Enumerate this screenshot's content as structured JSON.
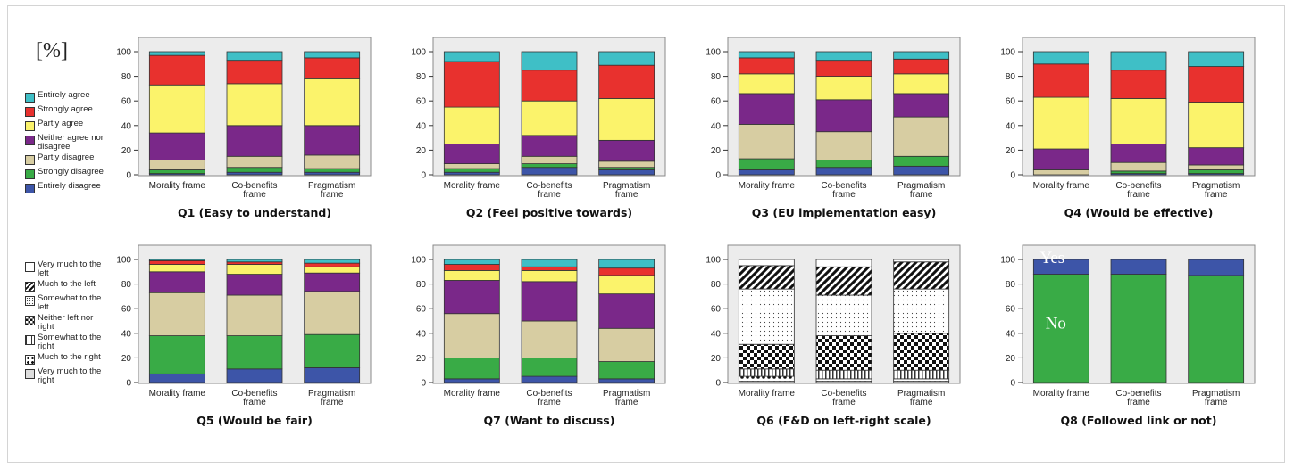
{
  "unit_label": "[%]",
  "colors": {
    "plot_bg": "#ececec",
    "entirely_agree": "#3fbfc6",
    "strongly_agree": "#e8312e",
    "partly_agree": "#fbf36b",
    "neither": "#7a2889",
    "partly_disagree": "#d7cda2",
    "strongly_disagree": "#39ab46",
    "entirely_disagree": "#3d55a8",
    "yes": "#3d55a8",
    "no": "#39ab46"
  },
  "legend_agree": [
    {
      "label": "Entirely agree",
      "color": "#3fbfc6"
    },
    {
      "label": "Strongly agree",
      "color": "#e8312e"
    },
    {
      "label": "Partly agree",
      "color": "#fbf36b"
    },
    {
      "label": "Neither agree nor disagree",
      "color": "#7a2889"
    },
    {
      "label": "Partly disagree",
      "color": "#d7cda2"
    },
    {
      "label": "Strongly disagree",
      "color": "#39ab46"
    },
    {
      "label": "Entirely disagree",
      "color": "#3d55a8"
    }
  ],
  "legend_scale": [
    {
      "label": "Very much to the left",
      "pattern": "white"
    },
    {
      "label": "Much to the left",
      "pattern": "diag"
    },
    {
      "label": "Somewhat to the left",
      "pattern": "dots"
    },
    {
      "label": "Neither left nor right",
      "pattern": "checker"
    },
    {
      "label": "Somewhat to the right",
      "pattern": "vlines"
    },
    {
      "label": "Much to the right",
      "pattern": "bigdots"
    },
    {
      "label": "Very much to the right",
      "pattern": "fine"
    }
  ],
  "chart_data": [
    {
      "type": "bar",
      "stacked": true,
      "title": "Q1 (Easy to understand)",
      "categories": [
        "Morality frame",
        "Co-benefits frame",
        "Pragmatism frame"
      ],
      "ylim": [
        0,
        100
      ],
      "yticks": [
        0,
        20,
        40,
        60,
        80,
        100
      ],
      "series": [
        {
          "name": "Entirely disagree",
          "values": [
            1,
            2,
            2
          ]
        },
        {
          "name": "Strongly disagree",
          "values": [
            3,
            4,
            3
          ]
        },
        {
          "name": "Partly disagree",
          "values": [
            8,
            9,
            11
          ]
        },
        {
          "name": "Neither agree nor disagree",
          "values": [
            22,
            25,
            24
          ]
        },
        {
          "name": "Partly agree",
          "values": [
            39,
            34,
            38
          ]
        },
        {
          "name": "Strongly agree",
          "values": [
            24,
            19,
            17
          ]
        },
        {
          "name": "Entirely agree",
          "values": [
            3,
            7,
            5
          ]
        }
      ]
    },
    {
      "type": "bar",
      "stacked": true,
      "title": "Q2 (Feel positive towards)",
      "categories": [
        "Morality frame",
        "Co-benefits frame",
        "Pragmatism frame"
      ],
      "ylim": [
        0,
        100
      ],
      "yticks": [
        0,
        20,
        40,
        60,
        80,
        100
      ],
      "series": [
        {
          "name": "Entirely disagree",
          "values": [
            2,
            6,
            4
          ]
        },
        {
          "name": "Strongly disagree",
          "values": [
            3,
            3,
            2
          ]
        },
        {
          "name": "Partly disagree",
          "values": [
            4,
            6,
            5
          ]
        },
        {
          "name": "Neither agree nor disagree",
          "values": [
            16,
            17,
            17
          ]
        },
        {
          "name": "Partly agree",
          "values": [
            30,
            28,
            34
          ]
        },
        {
          "name": "Strongly agree",
          "values": [
            37,
            25,
            27
          ]
        },
        {
          "name": "Entirely agree",
          "values": [
            8,
            15,
            11
          ]
        }
      ]
    },
    {
      "type": "bar",
      "stacked": true,
      "title": "Q3 (EU implementation easy)",
      "categories": [
        "Morality frame",
        "Co-benefits frame",
        "Pragmatism frame"
      ],
      "ylim": [
        0,
        100
      ],
      "yticks": [
        0,
        20,
        40,
        60,
        80,
        100
      ],
      "series": [
        {
          "name": "Entirely disagree",
          "values": [
            4,
            6,
            7
          ]
        },
        {
          "name": "Strongly disagree",
          "values": [
            9,
            6,
            8
          ]
        },
        {
          "name": "Partly disagree",
          "values": [
            28,
            23,
            32
          ]
        },
        {
          "name": "Neither agree nor disagree",
          "values": [
            25,
            26,
            19
          ]
        },
        {
          "name": "Partly agree",
          "values": [
            16,
            19,
            16
          ]
        },
        {
          "name": "Strongly agree",
          "values": [
            13,
            13,
            12
          ]
        },
        {
          "name": "Entirely agree",
          "values": [
            5,
            7,
            6
          ]
        }
      ]
    },
    {
      "type": "bar",
      "stacked": true,
      "title": "Q4 (Would be effective)",
      "categories": [
        "Morality frame",
        "Co-benefits frame",
        "Pragmatism frame"
      ],
      "ylim": [
        0,
        100
      ],
      "yticks": [
        0,
        20,
        40,
        60,
        80,
        100
      ],
      "series": [
        {
          "name": "Entirely disagree",
          "values": [
            0,
            1,
            1
          ]
        },
        {
          "name": "Strongly disagree",
          "values": [
            0,
            2,
            3
          ]
        },
        {
          "name": "Partly disagree",
          "values": [
            4,
            7,
            4
          ]
        },
        {
          "name": "Neither agree nor disagree",
          "values": [
            17,
            15,
            14
          ]
        },
        {
          "name": "Partly agree",
          "values": [
            42,
            37,
            37
          ]
        },
        {
          "name": "Strongly agree",
          "values": [
            27,
            23,
            29
          ]
        },
        {
          "name": "Entirely agree",
          "values": [
            10,
            15,
            12
          ]
        }
      ]
    },
    {
      "type": "bar",
      "stacked": true,
      "title": "Q5 (Would be fair)",
      "categories": [
        "Morality frame",
        "Co-benefits frame",
        "Pragmatism frame"
      ],
      "ylim": [
        0,
        100
      ],
      "yticks": [
        0,
        20,
        40,
        60,
        80,
        100
      ],
      "series": [
        {
          "name": "Entirely disagree",
          "values": [
            7,
            11,
            12
          ]
        },
        {
          "name": "Strongly disagree",
          "values": [
            31,
            27,
            27
          ]
        },
        {
          "name": "Partly disagree",
          "values": [
            35,
            33,
            35
          ]
        },
        {
          "name": "Neither agree nor disagree",
          "values": [
            17,
            17,
            15
          ]
        },
        {
          "name": "Partly agree",
          "values": [
            6,
            8,
            5
          ]
        },
        {
          "name": "Strongly agree",
          "values": [
            3,
            2,
            3
          ]
        },
        {
          "name": "Entirely agree",
          "values": [
            1,
            2,
            3
          ]
        }
      ]
    },
    {
      "type": "bar",
      "stacked": true,
      "title": "Q7 (Want to discuss)",
      "categories": [
        "Morality frame",
        "Co-benefits frame",
        "Pragmatism frame"
      ],
      "ylim": [
        0,
        100
      ],
      "yticks": [
        0,
        20,
        40,
        60,
        80,
        100
      ],
      "series": [
        {
          "name": "Entirely disagree",
          "values": [
            3,
            5,
            3
          ]
        },
        {
          "name": "Strongly disagree",
          "values": [
            17,
            15,
            14
          ]
        },
        {
          "name": "Partly disagree",
          "values": [
            36,
            30,
            27
          ]
        },
        {
          "name": "Neither agree nor disagree",
          "values": [
            27,
            32,
            28
          ]
        },
        {
          "name": "Partly agree",
          "values": [
            8,
            9,
            15
          ]
        },
        {
          "name": "Strongly agree",
          "values": [
            5,
            3,
            6
          ]
        },
        {
          "name": "Entirely agree",
          "values": [
            4,
            6,
            7
          ]
        }
      ]
    },
    {
      "type": "bar",
      "stacked": true,
      "title": "Q6 (F&D on left-right scale)",
      "categories": [
        "Morality frame",
        "Co-benefits frame",
        "Pragmatism frame"
      ],
      "ylim": [
        0,
        100
      ],
      "yticks": [
        0,
        20,
        40,
        60,
        80,
        100
      ],
      "series": [
        {
          "name": "Very much to the right",
          "values": [
            1,
            1,
            1
          ]
        },
        {
          "name": "Much to the right",
          "values": [
            4,
            2,
            2
          ]
        },
        {
          "name": "Somewhat to the right",
          "values": [
            6,
            7,
            7
          ]
        },
        {
          "name": "Neither left nor right",
          "values": [
            20,
            28,
            30
          ]
        },
        {
          "name": "Somewhat to the left",
          "values": [
            45,
            33,
            36
          ]
        },
        {
          "name": "Much to the left",
          "values": [
            19,
            23,
            22
          ]
        },
        {
          "name": "Very much to the left",
          "values": [
            5,
            6,
            2
          ]
        }
      ]
    },
    {
      "type": "bar",
      "stacked": true,
      "title": "Q8 (Followed link or not)",
      "categories": [
        "Morality frame",
        "Co-benefits frame",
        "Pragmatism frame"
      ],
      "ylim": [
        0,
        100
      ],
      "yticks": [
        0,
        20,
        40,
        60,
        80,
        100
      ],
      "series": [
        {
          "name": "No",
          "values": [
            88,
            88,
            87
          ]
        },
        {
          "name": "Yes",
          "values": [
            12,
            12,
            13
          ]
        }
      ],
      "annotations": [
        "Yes",
        "No"
      ]
    }
  ]
}
